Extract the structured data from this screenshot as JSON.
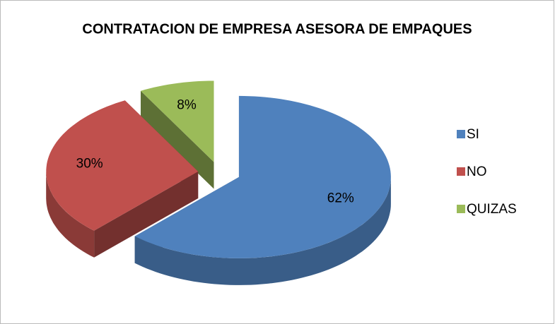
{
  "chart_data": {
    "type": "pie",
    "title": "CONTRATACION DE EMPRESA ASESORA DE EMPAQUES",
    "categories": [
      "SI",
      "NO",
      "QUIZAS"
    ],
    "values": [
      62,
      30,
      8
    ],
    "value_labels": [
      "62%",
      "30%",
      "8%"
    ],
    "colors": [
      "#4f81bd",
      "#c0504d",
      "#9bbb59"
    ],
    "legend": "right"
  }
}
